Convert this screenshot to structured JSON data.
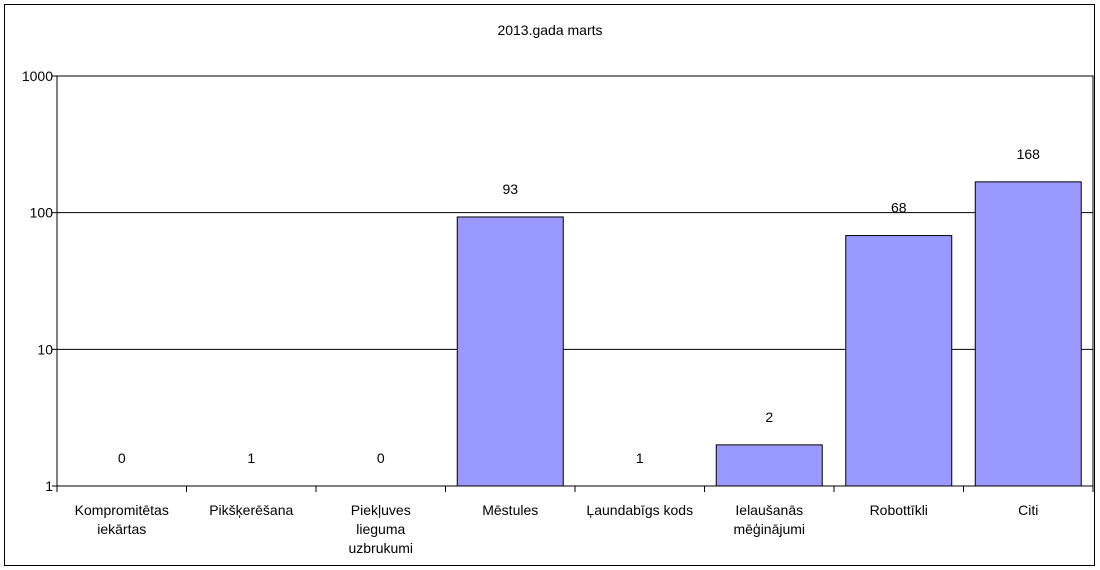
{
  "chart_data": {
    "type": "bar",
    "title": "2013.gada marts",
    "xlabel": "",
    "ylabel": "",
    "y_scale": "log",
    "ylim": [
      1,
      1000
    ],
    "y_ticks": [
      1,
      10,
      100,
      1000
    ],
    "grid": true,
    "legend": "none",
    "bar_color": "#9999ff",
    "categories": [
      [
        "Kompromitētas",
        "iekārtas"
      ],
      [
        "Pikšķerēšana"
      ],
      [
        "Piekļuves",
        "lieguma",
        "uzbrukumi"
      ],
      [
        "Mēstules"
      ],
      [
        "Ļaundabīgs kods"
      ],
      [
        "Ielaušanās",
        "mēģinājumi"
      ],
      [
        "Robottīkli"
      ],
      [
        "Citi"
      ]
    ],
    "values": [
      0,
      1,
      0,
      93,
      1,
      2,
      68,
      168
    ]
  }
}
